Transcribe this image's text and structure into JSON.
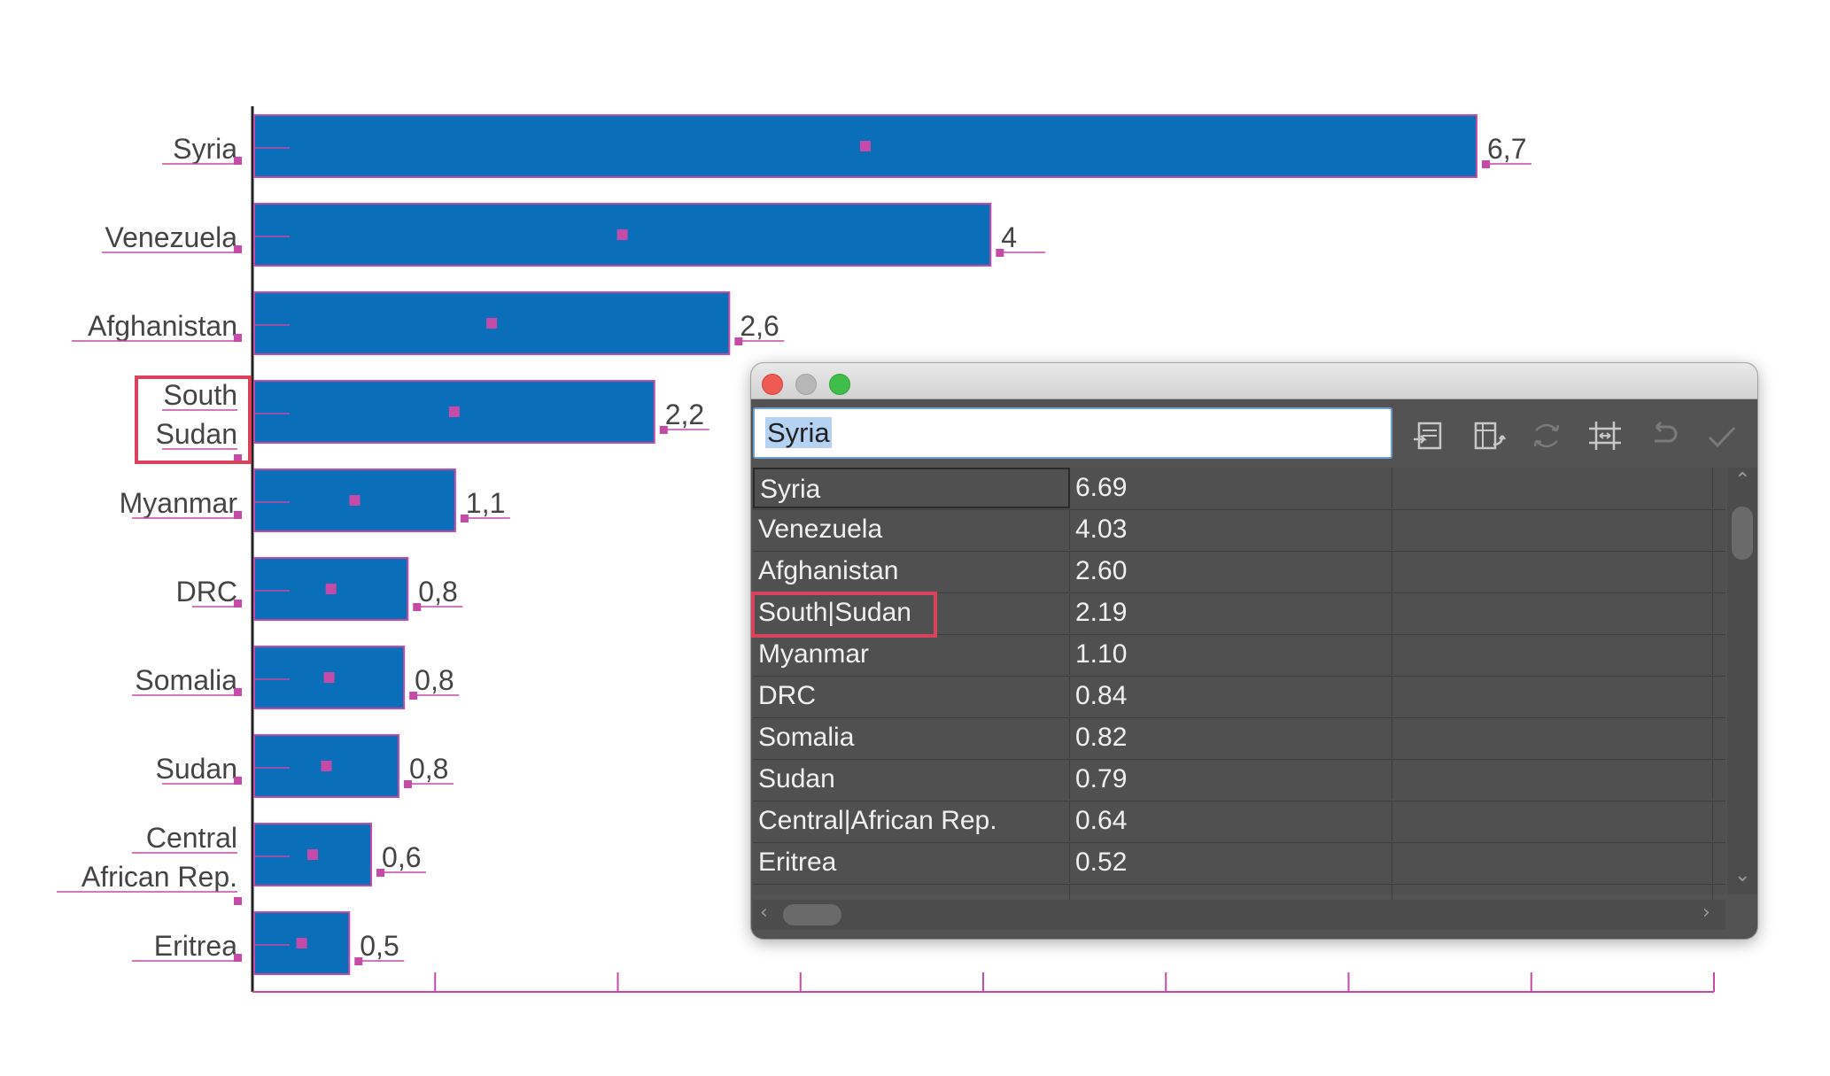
{
  "chart_data": {
    "type": "bar",
    "orientation": "horizontal",
    "categories": [
      "Syria",
      "Venezuela",
      "Afghanistan",
      "South Sudan",
      "Myanmar",
      "DRC",
      "Somalia",
      "Sudan",
      "Central African Rep.",
      "Eritrea"
    ],
    "category_lines": [
      [
        "Syria"
      ],
      [
        "Venezuela"
      ],
      [
        "Afghanistan"
      ],
      [
        "South",
        "Sudan"
      ],
      [
        "Myanmar"
      ],
      [
        "DRC"
      ],
      [
        "Somalia"
      ],
      [
        "Sudan"
      ],
      [
        "Central",
        "African Rep."
      ],
      [
        "Eritrea"
      ]
    ],
    "values": [
      6.69,
      4.03,
      2.6,
      2.19,
      1.1,
      0.84,
      0.82,
      0.79,
      0.64,
      0.52
    ],
    "value_labels": [
      "6,7",
      "4",
      "2,6",
      "2,2",
      "1,1",
      "0,8",
      "0,8",
      "0,8",
      "0,6",
      "0,5"
    ],
    "xlim": [
      0,
      8
    ],
    "title": "",
    "xlabel": "",
    "ylabel": "",
    "bar_color": "#0a6fb8",
    "selection_color": "#c64aa8",
    "highlight_color": "#d8435b",
    "highlighted_category": "South Sudan"
  },
  "data_window": {
    "cell_editor_value": "Syria",
    "toolbar": {
      "import_icon": "import-data-icon",
      "transpose_icon": "transpose-icon",
      "swap_xy_icon": "swap-xy-icon",
      "cell_style_icon": "cell-style-icon",
      "revert_icon": "revert-icon",
      "apply_icon": "apply-checkmark-icon"
    },
    "rows": [
      {
        "label": "Syria",
        "value": "6.69"
      },
      {
        "label": "Venezuela",
        "value": "4.03"
      },
      {
        "label": "Afghanistan",
        "value": "2.60"
      },
      {
        "label": "South|Sudan",
        "value": "2.19"
      },
      {
        "label": "Myanmar",
        "value": "1.10"
      },
      {
        "label": "DRC",
        "value": "0.84"
      },
      {
        "label": "Somalia",
        "value": "0.82"
      },
      {
        "label": "Sudan",
        "value": "0.79"
      },
      {
        "label": "Central|African Rep.",
        "value": "0.64"
      },
      {
        "label": "Eritrea",
        "value": "0.52"
      }
    ]
  }
}
